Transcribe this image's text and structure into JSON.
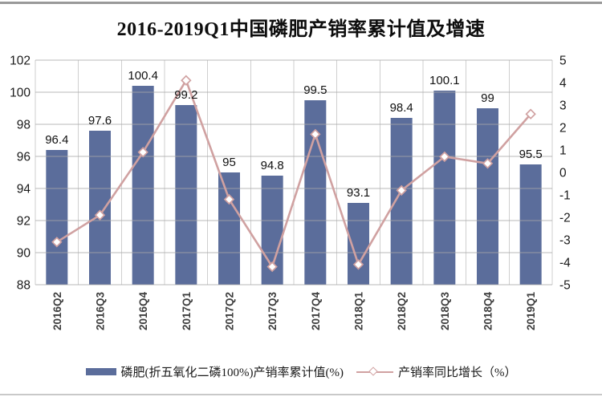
{
  "title": "2016-2019Q1中国磷肥产销率累计值及增速",
  "colors": {
    "bar": "#5b6d9b",
    "line": "#d0a1a1",
    "grid": "#a8a8a8",
    "axis_text": "#1a1a1a",
    "bar_label": "#111111",
    "x_label": "#3d3d3d",
    "top_border": "#999999",
    "bottom_border": "#c9c9c9",
    "background": "#ffffff"
  },
  "chart_data": {
    "type": "bar+line combo",
    "categories": [
      "2016Q2",
      "2016Q3",
      "2016Q4",
      "2017Q1",
      "2017Q2",
      "2017Q3",
      "2017Q4",
      "2018Q1",
      "2018Q2",
      "2018Q3",
      "2018Q4",
      "2019Q1"
    ],
    "series": [
      {
        "name": "磷肥(折五氧化二磷100%)产销率累计值(%)",
        "type": "bar",
        "axis": "left",
        "values": [
          96.4,
          97.6,
          100.4,
          99.2,
          95,
          94.8,
          99.5,
          93.1,
          98.4,
          100.1,
          99,
          95.5
        ],
        "data_labels": [
          "96.4",
          "97.6",
          "100.4",
          "99.2",
          "95",
          "94.8",
          "99.5",
          "93.1",
          "98.4",
          "100.1",
          "99",
          "95.5"
        ]
      },
      {
        "name": "产销率同比增长（%）",
        "type": "line",
        "axis": "right",
        "marker": "diamond",
        "values": [
          -3.1,
          -1.9,
          0.9,
          4.1,
          -1.2,
          -4.2,
          1.7,
          -4.1,
          -0.8,
          0.7,
          0.4,
          2.6
        ]
      }
    ],
    "left_axis": {
      "min": 88,
      "max": 102,
      "step": 2,
      "ticks": [
        "102",
        "100",
        "98",
        "96",
        "94",
        "92",
        "90",
        "88"
      ]
    },
    "right_axis": {
      "min": -5,
      "max": 5,
      "step": 1,
      "ticks": [
        "5",
        "4",
        "3",
        "2",
        "1",
        "0",
        "-1",
        "-2",
        "-3",
        "-4",
        "-5"
      ]
    },
    "grid": true,
    "legend_position": "bottom"
  }
}
